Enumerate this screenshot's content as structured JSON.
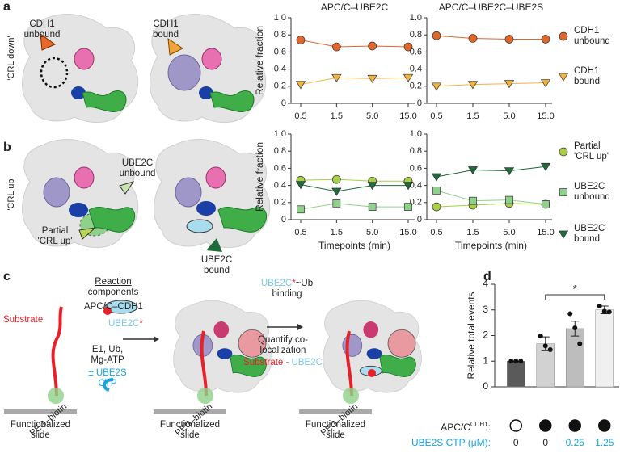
{
  "chart_data": [
    {
      "type": "line",
      "ylabel": "Relative fraction",
      "titles": [
        "APC/C–UBE2C",
        "APC/C–UBE2C–UBE2S"
      ],
      "categories": [
        "0.5",
        "1.5",
        "5.0",
        "15.0"
      ],
      "ylim": [
        0,
        1
      ],
      "yticks": [
        0,
        0.2,
        0.4,
        0.6,
        0.8,
        {
          "value": 1,
          "label": "1.0"
        }
      ],
      "legend": "right",
      "series": [
        {
          "name": "CDH1 unbound",
          "color": "#e0662a",
          "marker": "circle",
          "values": [
            [
              0.74,
              0.66,
              0.67,
              0.66
            ],
            [
              0.79,
              0.76,
              0.75,
              0.75
            ]
          ]
        },
        {
          "name": "CDH1 bound",
          "color": "#f2b441",
          "marker": "triangle-down",
          "values": [
            [
              0.22,
              0.3,
              0.29,
              0.3
            ],
            [
              0.2,
              0.22,
              0.23,
              0.24
            ]
          ]
        }
      ]
    },
    {
      "type": "line",
      "ylabel": "Relative fraction",
      "xlabel": "Timepoints (min)",
      "categories": [
        "0.5",
        "1.5",
        "5.0",
        "15.0"
      ],
      "ylim": [
        0,
        1
      ],
      "yticks": [
        0,
        0.2,
        0.4,
        0.6,
        0.8,
        {
          "value": 1,
          "label": "1.0"
        }
      ],
      "legend": "right",
      "series": [
        {
          "name": "Partial 'CRL up'",
          "color": "#a8cf45",
          "marker": "circle",
          "values": [
            [
              0.46,
              0.47,
              0.45,
              0.45
            ],
            [
              0.15,
              0.17,
              0.19,
              0.18
            ]
          ]
        },
        {
          "name": "UBE2C unbound",
          "color": "#8fd18a",
          "marker": "square",
          "values": [
            [
              0.12,
              0.19,
              0.15,
              0.15
            ],
            [
              0.34,
              0.22,
              0.23,
              0.18
            ]
          ]
        },
        {
          "name": "UBE2C bound",
          "color": "#1f6b3a",
          "marker": "triangle-down",
          "values": [
            [
              0.41,
              0.33,
              0.4,
              0.4
            ],
            [
              0.5,
              0.58,
              0.57,
              0.62
            ]
          ]
        }
      ]
    },
    {
      "type": "bar",
      "ylabel": "Relative total events",
      "ylim": [
        0,
        4
      ],
      "yticks": [
        0,
        1,
        2,
        3,
        4
      ],
      "categories": [
        "0",
        "0",
        "0.25",
        "1.25"
      ],
      "category_colors": [
        "#222222",
        "#222222",
        "#1aa3dd",
        "#1aa3dd"
      ],
      "values": [
        1.0,
        1.68,
        2.27,
        3.0
      ],
      "errors": [
        0,
        0.27,
        0.29,
        0.15
      ],
      "points": [
        [
          1.0,
          1.0,
          1.0
        ],
        [
          1.98,
          1.6,
          1.45
        ],
        [
          2.85,
          2.3,
          1.68
        ],
        [
          3.15,
          2.95,
          2.92
        ]
      ],
      "colors": [
        "#5a5a5a",
        "#d2d2d2",
        "#bdbdbd",
        "#f0f0f0"
      ],
      "significance": {
        "from": 1,
        "to": 3,
        "label": "*"
      },
      "row_label_1": {
        "text": "APC/C",
        "sup": "CDH1",
        "suffix": ":"
      },
      "cdh1": [
        false,
        true,
        true,
        true
      ],
      "row_label_2": "UBE2S CTP (μM):"
    }
  ],
  "diagram": {
    "panel_labels": [
      "a",
      "b",
      "c",
      "d"
    ],
    "row_labels": [
      "'CRL down'",
      "'CRL up'"
    ],
    "cdh1_unbound": "CDH1 unbound",
    "cdh1_bound": "CDH1 bound",
    "ube2c_unbound": "UBE2C unbound",
    "partial_crl_up": "Partial 'CRL up'",
    "ube2c_bound": "UBE2C bound",
    "substrate": "Substrate",
    "reaction_components": "Reaction components",
    "apc_cdh1": "APC/C–CDH1",
    "ube2c_star": [
      "UBE2C",
      "*"
    ],
    "e1": "E1, Ub, Mg-ATP",
    "ube2s": "± UBE2S CTP",
    "peg_biotin": "PEG–biotin",
    "slide": "Functionalized slide",
    "binding": [
      "UBE2C",
      "*",
      "~Ub binding"
    ],
    "quantify": "Quantify co-localization",
    "coloc": [
      "Substrate",
      " - ",
      "UBE2C"
    ]
  }
}
